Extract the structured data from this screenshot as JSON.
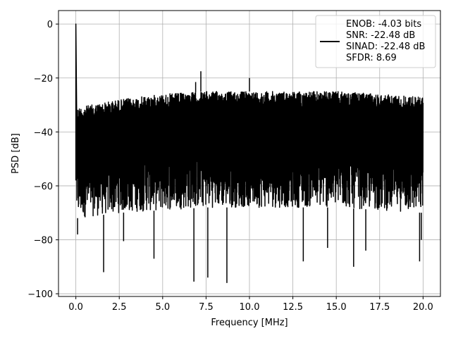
{
  "chart_data": {
    "type": "line",
    "xlabel": "Frequency [MHz]",
    "ylabel": "PSD [dB]",
    "xlim": [
      -1.0,
      21.0
    ],
    "ylim": [
      -101.0,
      5.0
    ],
    "xticks": [
      0.0,
      2.5,
      5.0,
      7.5,
      10.0,
      12.5,
      15.0,
      17.5,
      20.0
    ],
    "xtick_labels": [
      "0.0",
      "2.5",
      "5.0",
      "7.5",
      "10.0",
      "12.5",
      "15.0",
      "17.5",
      "20.0"
    ],
    "yticks": [
      0,
      -20,
      -40,
      -60,
      -80,
      -100
    ],
    "ytick_labels": [
      "0",
      "−20",
      "−40",
      "−60",
      "−80",
      "−100"
    ],
    "grid": true,
    "legend_placement": "top-right",
    "legend_entries": [
      "ENOB: -4.03 bits",
      "SNR: -22.48 dB",
      "SINAD: -22.48 dB",
      "SFDR: 8.69"
    ],
    "series": [
      {
        "color": "#000000",
        "noise_band": {
          "x": [
            0.05,
            2.5,
            5.0,
            7.5,
            10.0,
            12.5,
            15.0,
            17.5,
            20.0
          ],
          "upper": [
            -31,
            -28,
            -26,
            -25,
            -25,
            -25,
            -25,
            -26,
            -27
          ],
          "lower": [
            -72,
            -70,
            -69,
            -68,
            -68,
            -68,
            -68,
            -69,
            -70
          ]
        },
        "peaks": [
          {
            "x": 0.0,
            "y": 0.0
          },
          {
            "x": 7.2,
            "y": -17.5
          },
          {
            "x": 10.0,
            "y": -20.0
          },
          {
            "x": 6.9,
            "y": -21.5
          }
        ],
        "dips": [
          {
            "x": 0.1,
            "y": -78
          },
          {
            "x": 1.6,
            "y": -92
          },
          {
            "x": 2.75,
            "y": -80.5
          },
          {
            "x": 4.5,
            "y": -87
          },
          {
            "x": 6.8,
            "y": -95.5
          },
          {
            "x": 7.6,
            "y": -94
          },
          {
            "x": 8.7,
            "y": -96
          },
          {
            "x": 13.1,
            "y": -88
          },
          {
            "x": 14.5,
            "y": -83
          },
          {
            "x": 16.0,
            "y": -90
          },
          {
            "x": 16.7,
            "y": -84
          },
          {
            "x": 19.8,
            "y": -88
          },
          {
            "x": 19.9,
            "y": -80
          }
        ]
      }
    ]
  }
}
